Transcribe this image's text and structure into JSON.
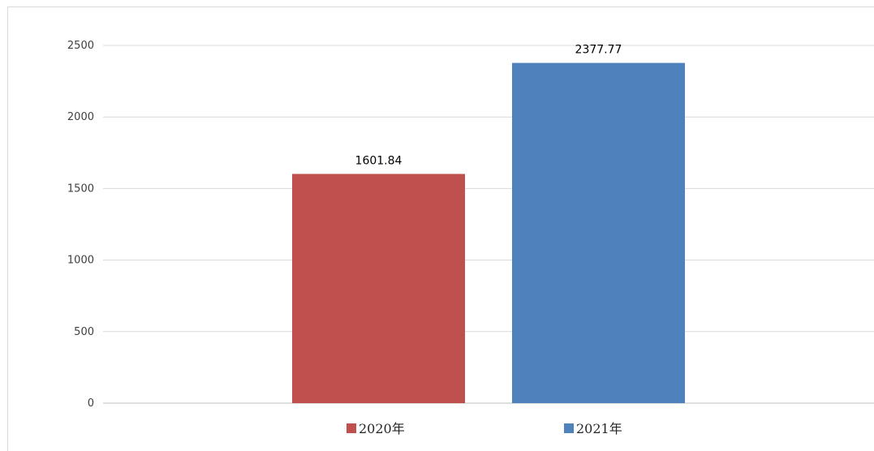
{
  "chart_data": {
    "type": "bar",
    "categories": [
      "2020年",
      "2021年"
    ],
    "values": [
      1601.84,
      2377.77
    ],
    "data_labels": [
      "1601.84",
      "2377.77"
    ],
    "colors": [
      "#C0504D",
      "#4F81BD"
    ],
    "ylim": [
      0,
      2500
    ],
    "yticks": [
      0,
      500,
      1000,
      1500,
      2000,
      2500
    ],
    "grid": true,
    "legend": "bottom",
    "title": "",
    "xlabel": "",
    "ylabel": ""
  }
}
